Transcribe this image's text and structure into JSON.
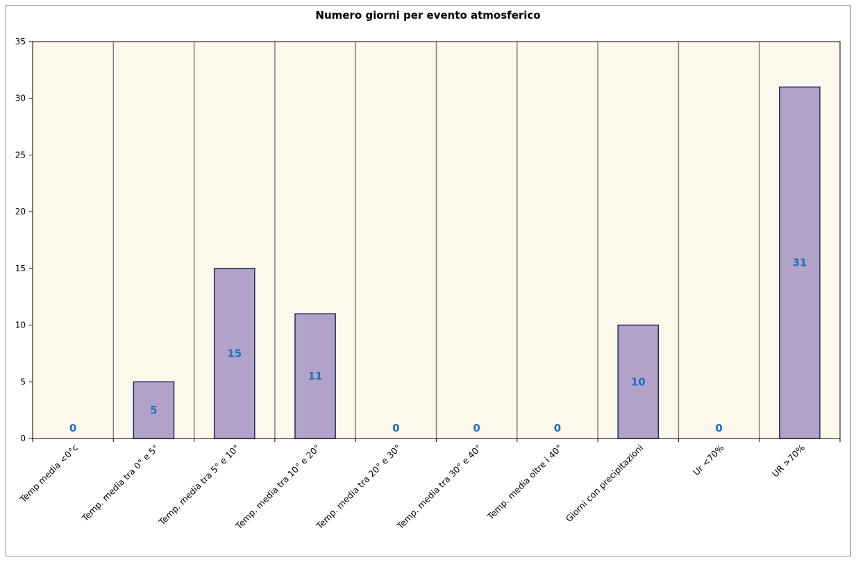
{
  "chart_data": {
    "type": "bar",
    "title": "Numero giorni  per evento atmosferico",
    "xlabel": "",
    "ylabel": "",
    "ylim": [
      0,
      35
    ],
    "yticks": [
      0,
      5,
      10,
      15,
      20,
      25,
      30,
      35
    ],
    "categories": [
      "Temp media <0°c",
      "Temp. media tra 0° e 5°",
      "Temp. media tra 5° e 10°",
      "Temp. media tra 10° e 20°",
      "Temp. media tra 20° e 30°",
      "Temp. media tra 30° e 40°",
      "Temp. media oltre i 40°",
      "Giorni con precipitazioni",
      "Ur  <70%",
      "UR >70%"
    ],
    "values": [
      0,
      5,
      15,
      11,
      0,
      0,
      0,
      10,
      0,
      31
    ],
    "data_labels": [
      "0",
      "5",
      "15",
      "11",
      "0",
      "0",
      "0",
      "10",
      "0",
      "31"
    ],
    "grid": "vertical category separators",
    "legend": "none",
    "colors": {
      "bar_fill": "#b0a2c8",
      "bar_stroke": "#1f2a5c",
      "plot_background": "#fdf8ec",
      "gridline": "#808080",
      "data_label": "#1f6fc0"
    }
  }
}
